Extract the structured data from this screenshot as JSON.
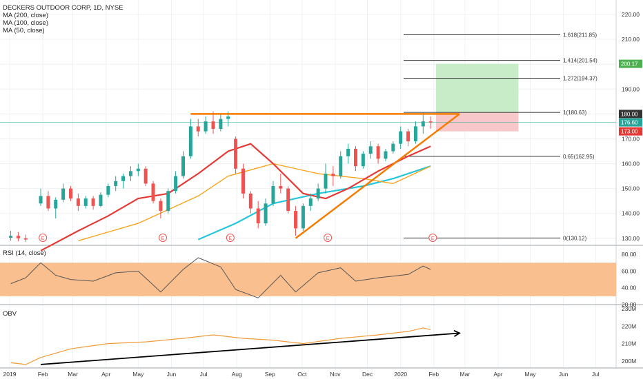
{
  "header": {
    "symbol_line": "DECKERS OUTDOOR CORP, 1D, NYSE",
    "indicators": [
      "MA (200, close)",
      "MA (100, close)",
      "MA (50, close)"
    ]
  },
  "panes": {
    "rsi_label": "RSI (14, close)",
    "obv_label": "OBV"
  },
  "colors": {
    "background": "#ffffff",
    "grid": "#eef0f3",
    "candle_up": "#26a69a",
    "candle_down": "#ef5350",
    "ma200": "#26c6da",
    "ma100": "#f7a21b",
    "ma50": "#e53935",
    "trendline": "#f57c00",
    "rsi_band": "#f9bf8f",
    "rsi_line": "#555555",
    "obv_line": "#f29a3a",
    "arrow": "#000000",
    "fib_line": "#333333",
    "target_zone": "#c8ecc7",
    "stop_zone": "#f8c7c9",
    "price_line": "#26a69a"
  },
  "chart_data": {
    "type": "candlestick",
    "x_start": "2019-01",
    "x_ticks": [
      "2019",
      "Feb",
      "Mar",
      "Apr",
      "May",
      "Jun",
      "Jul",
      "Aug",
      "Sep",
      "Oct",
      "Nov",
      "Dec",
      "2020",
      "Feb",
      "Mar",
      "Apr",
      "May",
      "Jun",
      "Jul"
    ],
    "price_axis": {
      "ylim": [
        128,
        225
      ],
      "ticks": [
        "220.00",
        "210.00",
        "200.00",
        "190.00",
        "180.00",
        "170.00",
        "160.00",
        "150.00",
        "140.00",
        "130.00"
      ],
      "tick_values": [
        220,
        210,
        200,
        190,
        180,
        170,
        160,
        150,
        140,
        130
      ]
    },
    "price_labels": [
      {
        "text": "200.17",
        "value": 200.17,
        "color": "#4caf50"
      },
      {
        "text": "180.00",
        "value": 180.0,
        "color": "#333333"
      },
      {
        "text": "176.60",
        "value": 176.6,
        "color": "#26a69a"
      },
      {
        "text": "173.00",
        "value": 173.0,
        "color": "#e53935"
      }
    ],
    "fibonacci": [
      {
        "label": "1.618(211.85)",
        "value": 211.85
      },
      {
        "label": "1.414(201.54)",
        "value": 201.54
      },
      {
        "label": "1.272(194.37)",
        "value": 194.37
      },
      {
        "label": "1(180.63)",
        "value": 180.63
      },
      {
        "label": "0.65(162.95)",
        "value": 162.95
      },
      {
        "label": "0(130.12)",
        "value": 130.12
      }
    ],
    "earnings_marker": "E",
    "earnings_dates": [
      "2019-02-01",
      "2019-05-24",
      "2019-07-26",
      "2019-10-25",
      "2020-01-31"
    ],
    "ohlc": [
      {
        "t": "2019-01-02",
        "o": 130.2,
        "h": 133.0,
        "l": 129.0,
        "c": 131.0
      },
      {
        "t": "2019-01-09",
        "o": 131.0,
        "h": 132.5,
        "l": 128.8,
        "c": 130.0
      },
      {
        "t": "2019-01-16",
        "o": 130.0,
        "h": 131.5,
        "l": 128.5,
        "c": 129.5
      },
      {
        "t": "2019-01-30",
        "o": 144.0,
        "h": 150.0,
        "l": 143.0,
        "c": 147.0
      },
      {
        "t": "2019-02-06",
        "o": 147.0,
        "h": 149.0,
        "l": 141.0,
        "c": 142.0
      },
      {
        "t": "2019-02-13",
        "o": 142.0,
        "h": 146.5,
        "l": 138.0,
        "c": 145.5
      },
      {
        "t": "2019-02-20",
        "o": 145.5,
        "h": 152.0,
        "l": 144.5,
        "c": 150.0
      },
      {
        "t": "2019-02-27",
        "o": 150.0,
        "h": 151.0,
        "l": 145.0,
        "c": 146.0
      },
      {
        "t": "2019-03-06",
        "o": 146.0,
        "h": 148.0,
        "l": 141.0,
        "c": 143.0
      },
      {
        "t": "2019-03-13",
        "o": 143.0,
        "h": 147.0,
        "l": 142.0,
        "c": 146.0
      },
      {
        "t": "2019-03-20",
        "o": 146.0,
        "h": 147.0,
        "l": 141.5,
        "c": 143.0
      },
      {
        "t": "2019-03-27",
        "o": 143.0,
        "h": 148.5,
        "l": 142.5,
        "c": 147.5
      },
      {
        "t": "2019-04-03",
        "o": 147.5,
        "h": 152.0,
        "l": 146.5,
        "c": 151.0
      },
      {
        "t": "2019-04-10",
        "o": 151.0,
        "h": 155.0,
        "l": 149.0,
        "c": 153.0
      },
      {
        "t": "2019-04-17",
        "o": 153.0,
        "h": 156.0,
        "l": 150.0,
        "c": 155.0
      },
      {
        "t": "2019-04-24",
        "o": 155.0,
        "h": 159.0,
        "l": 153.0,
        "c": 157.0
      },
      {
        "t": "2019-05-01",
        "o": 157.0,
        "h": 160.0,
        "l": 155.0,
        "c": 158.0
      },
      {
        "t": "2019-05-08",
        "o": 158.0,
        "h": 159.0,
        "l": 151.0,
        "c": 152.0
      },
      {
        "t": "2019-05-15",
        "o": 152.0,
        "h": 153.0,
        "l": 144.0,
        "c": 145.0
      },
      {
        "t": "2019-05-22",
        "o": 145.0,
        "h": 146.0,
        "l": 138.0,
        "c": 141.0
      },
      {
        "t": "2019-05-29",
        "o": 141.0,
        "h": 150.0,
        "l": 140.0,
        "c": 149.0
      },
      {
        "t": "2019-06-05",
        "o": 149.0,
        "h": 157.0,
        "l": 148.0,
        "c": 155.0
      },
      {
        "t": "2019-06-12",
        "o": 155.0,
        "h": 165.0,
        "l": 154.0,
        "c": 163.0
      },
      {
        "t": "2019-06-19",
        "o": 163.0,
        "h": 178.0,
        "l": 162.0,
        "c": 175.0
      },
      {
        "t": "2019-06-26",
        "o": 175.0,
        "h": 178.0,
        "l": 171.0,
        "c": 173.0
      },
      {
        "t": "2019-07-03",
        "o": 173.0,
        "h": 179.0,
        "l": 172.0,
        "c": 177.0
      },
      {
        "t": "2019-07-10",
        "o": 177.0,
        "h": 181.0,
        "l": 172.0,
        "c": 174.0
      },
      {
        "t": "2019-07-17",
        "o": 174.0,
        "h": 180.0,
        "l": 173.0,
        "c": 178.0
      },
      {
        "t": "2019-07-24",
        "o": 178.0,
        "h": 181.0,
        "l": 175.0,
        "c": 179.0
      },
      {
        "t": "2019-07-31",
        "o": 170.0,
        "h": 171.0,
        "l": 156.0,
        "c": 158.0
      },
      {
        "t": "2019-08-07",
        "o": 158.0,
        "h": 160.0,
        "l": 146.0,
        "c": 148.0
      },
      {
        "t": "2019-08-14",
        "o": 148.0,
        "h": 149.0,
        "l": 140.0,
        "c": 142.0
      },
      {
        "t": "2019-08-21",
        "o": 142.0,
        "h": 145.0,
        "l": 134.0,
        "c": 136.0
      },
      {
        "t": "2019-08-28",
        "o": 136.0,
        "h": 146.0,
        "l": 135.0,
        "c": 144.0
      },
      {
        "t": "2019-09-04",
        "o": 144.0,
        "h": 153.0,
        "l": 143.0,
        "c": 151.0
      },
      {
        "t": "2019-09-11",
        "o": 151.0,
        "h": 156.0,
        "l": 148.0,
        "c": 150.0
      },
      {
        "t": "2019-09-18",
        "o": 150.0,
        "h": 151.0,
        "l": 140.0,
        "c": 141.0
      },
      {
        "t": "2019-09-25",
        "o": 141.0,
        "h": 143.0,
        "l": 131.0,
        "c": 134.0
      },
      {
        "t": "2019-10-02",
        "o": 134.0,
        "h": 144.0,
        "l": 133.0,
        "c": 143.0
      },
      {
        "t": "2019-10-09",
        "o": 143.0,
        "h": 148.0,
        "l": 141.0,
        "c": 146.0
      },
      {
        "t": "2019-10-16",
        "o": 146.0,
        "h": 152.0,
        "l": 145.0,
        "c": 150.0
      },
      {
        "t": "2019-10-23",
        "o": 150.0,
        "h": 160.0,
        "l": 148.0,
        "c": 156.0
      },
      {
        "t": "2019-10-30",
        "o": 156.0,
        "h": 159.0,
        "l": 151.0,
        "c": 155.0
      },
      {
        "t": "2019-11-06",
        "o": 155.0,
        "h": 165.0,
        "l": 154.0,
        "c": 163.0
      },
      {
        "t": "2019-11-13",
        "o": 163.0,
        "h": 168.0,
        "l": 160.0,
        "c": 166.0
      },
      {
        "t": "2019-11-20",
        "o": 166.0,
        "h": 167.0,
        "l": 157.0,
        "c": 159.0
      },
      {
        "t": "2019-11-27",
        "o": 159.0,
        "h": 165.0,
        "l": 158.0,
        "c": 164.0
      },
      {
        "t": "2019-12-04",
        "o": 164.0,
        "h": 169.0,
        "l": 162.0,
        "c": 167.0
      },
      {
        "t": "2019-12-11",
        "o": 167.0,
        "h": 168.0,
        "l": 160.0,
        "c": 162.0
      },
      {
        "t": "2019-12-18",
        "o": 162.0,
        "h": 166.0,
        "l": 161.0,
        "c": 165.0
      },
      {
        "t": "2019-12-25",
        "o": 165.0,
        "h": 169.0,
        "l": 164.0,
        "c": 168.0
      },
      {
        "t": "2020-01-01",
        "o": 168.0,
        "h": 175.0,
        "l": 166.0,
        "c": 173.0
      },
      {
        "t": "2020-01-08",
        "o": 173.0,
        "h": 174.0,
        "l": 167.0,
        "c": 169.0
      },
      {
        "t": "2020-01-15",
        "o": 169.0,
        "h": 177.0,
        "l": 168.0,
        "c": 175.0
      },
      {
        "t": "2020-01-22",
        "o": 175.0,
        "h": 180.5,
        "l": 172.0,
        "c": 177.0
      },
      {
        "t": "2020-01-29",
        "o": 177.0,
        "h": 179.0,
        "l": 174.0,
        "c": 176.6
      }
    ],
    "ma50": [
      {
        "t": "2019-01-30",
        "v": 125.0
      },
      {
        "t": "2019-03-06",
        "v": 133.0
      },
      {
        "t": "2019-04-03",
        "v": 139.0
      },
      {
        "t": "2019-05-01",
        "v": 146.0
      },
      {
        "t": "2019-05-29",
        "v": 148.0
      },
      {
        "t": "2019-06-26",
        "v": 156.0
      },
      {
        "t": "2019-07-24",
        "v": 165.0
      },
      {
        "t": "2019-08-14",
        "v": 168.0
      },
      {
        "t": "2019-09-04",
        "v": 160.0
      },
      {
        "t": "2019-10-02",
        "v": 148.0
      },
      {
        "t": "2019-10-23",
        "v": 146.0
      },
      {
        "t": "2019-11-13",
        "v": 150.0
      },
      {
        "t": "2019-12-11",
        "v": 157.0
      },
      {
        "t": "2020-01-08",
        "v": 163.0
      },
      {
        "t": "2020-01-29",
        "v": 167.0
      }
    ],
    "ma100": [
      {
        "t": "2019-03-06",
        "v": 129.0
      },
      {
        "t": "2019-05-01",
        "v": 136.0
      },
      {
        "t": "2019-06-26",
        "v": 147.0
      },
      {
        "t": "2019-07-24",
        "v": 155.0
      },
      {
        "t": "2019-09-04",
        "v": 160.0
      },
      {
        "t": "2019-10-16",
        "v": 156.0
      },
      {
        "t": "2019-11-27",
        "v": 154.0
      },
      {
        "t": "2019-12-25",
        "v": 152.0
      },
      {
        "t": "2020-01-29",
        "v": 159.0
      }
    ],
    "ma200": [
      {
        "t": "2019-06-26",
        "v": 129.5
      },
      {
        "t": "2019-07-31",
        "v": 136.0
      },
      {
        "t": "2019-09-04",
        "v": 144.0
      },
      {
        "t": "2019-10-16",
        "v": 148.0
      },
      {
        "t": "2019-11-27",
        "v": 151.0
      },
      {
        "t": "2019-12-25",
        "v": 154.0
      },
      {
        "t": "2020-01-29",
        "v": 159.0
      }
    ],
    "horizontal_resistance": {
      "from": "2019-06-19",
      "to": "2020-02-25",
      "value": 180.0
    },
    "rising_trendline": {
      "from": "2019-09-25",
      "to": "2020-02-25",
      "from_value": 130.0,
      "to_value": 180.0
    },
    "target_zone": {
      "from": "2020-02-03",
      "to": "2020-04-20",
      "low": 180.63,
      "high": 200.17
    },
    "stop_zone": {
      "from": "2020-02-03",
      "to": "2020-04-20",
      "low": 173.0,
      "high": 180.63
    },
    "rsi": {
      "label": "RSI (14, close)",
      "ylim": [
        20,
        90
      ],
      "ticks": [
        "80.00",
        "60.00",
        "40.00",
        "20.00"
      ],
      "tick_values": [
        80,
        60,
        40,
        20
      ],
      "band": [
        30,
        70
      ],
      "values": [
        {
          "t": "2019-01-02",
          "v": 45
        },
        {
          "t": "2019-01-16",
          "v": 52
        },
        {
          "t": "2019-01-30",
          "v": 70
        },
        {
          "t": "2019-02-13",
          "v": 55
        },
        {
          "t": "2019-02-27",
          "v": 50
        },
        {
          "t": "2019-03-20",
          "v": 48
        },
        {
          "t": "2019-04-10",
          "v": 58
        },
        {
          "t": "2019-05-01",
          "v": 60
        },
        {
          "t": "2019-05-22",
          "v": 35
        },
        {
          "t": "2019-06-12",
          "v": 62
        },
        {
          "t": "2019-06-26",
          "v": 76
        },
        {
          "t": "2019-07-17",
          "v": 65
        },
        {
          "t": "2019-07-31",
          "v": 38
        },
        {
          "t": "2019-08-21",
          "v": 28
        },
        {
          "t": "2019-09-11",
          "v": 55
        },
        {
          "t": "2019-09-25",
          "v": 35
        },
        {
          "t": "2019-10-16",
          "v": 58
        },
        {
          "t": "2019-11-06",
          "v": 64
        },
        {
          "t": "2019-11-20",
          "v": 48
        },
        {
          "t": "2019-12-11",
          "v": 52
        },
        {
          "t": "2020-01-08",
          "v": 56
        },
        {
          "t": "2020-01-22",
          "v": 66
        },
        {
          "t": "2020-01-29",
          "v": 62
        }
      ]
    },
    "obv": {
      "label": "OBV",
      "ylim": [
        196,
        232
      ],
      "ticks": [
        "230M",
        "220M",
        "210M",
        "200M"
      ],
      "tick_values": [
        230,
        220,
        210,
        200
      ],
      "values": [
        {
          "t": "2019-01-02",
          "v": 199
        },
        {
          "t": "2019-01-16",
          "v": 198
        },
        {
          "t": "2019-01-30",
          "v": 202
        },
        {
          "t": "2019-02-27",
          "v": 207
        },
        {
          "t": "2019-04-03",
          "v": 210
        },
        {
          "t": "2019-05-08",
          "v": 211
        },
        {
          "t": "2019-06-12",
          "v": 213
        },
        {
          "t": "2019-07-10",
          "v": 215
        },
        {
          "t": "2019-08-07",
          "v": 213
        },
        {
          "t": "2019-09-04",
          "v": 212
        },
        {
          "t": "2019-10-02",
          "v": 210
        },
        {
          "t": "2019-11-06",
          "v": 213
        },
        {
          "t": "2019-12-11",
          "v": 215
        },
        {
          "t": "2020-01-08",
          "v": 217
        },
        {
          "t": "2020-01-22",
          "v": 219
        },
        {
          "t": "2020-01-29",
          "v": 218
        }
      ],
      "arrow": {
        "from": "2019-01-30",
        "to": "2020-02-25",
        "from_value": 198,
        "to_value": 216
      }
    }
  }
}
